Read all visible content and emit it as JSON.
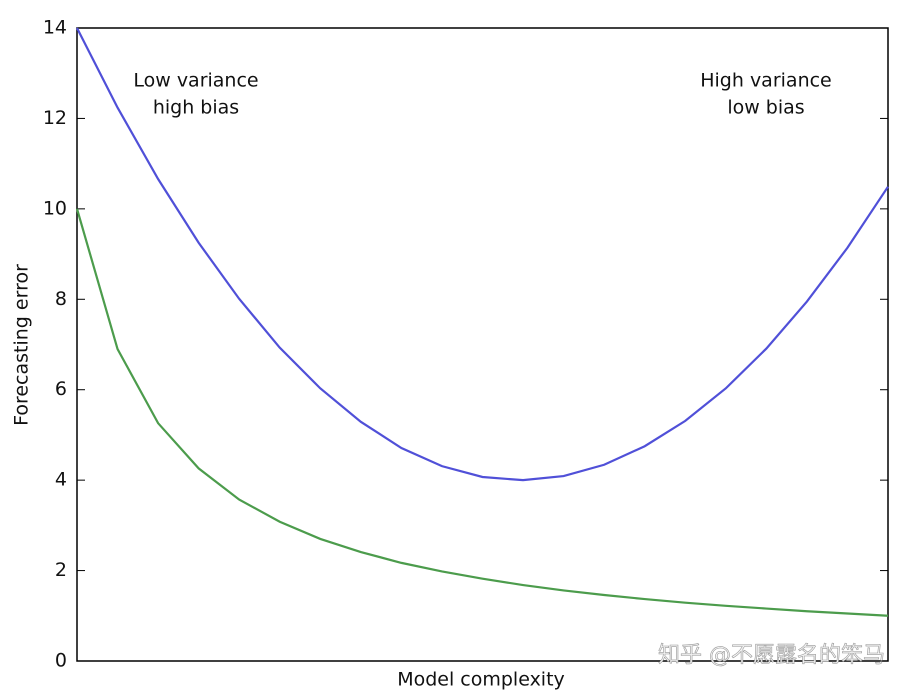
{
  "chart_data": {
    "type": "line",
    "y_label": "Forecasting error",
    "x_label": "Model complexity",
    "annotations": [
      {
        "lines": [
          "Low variance",
          "high bias"
        ]
      },
      {
        "lines": [
          "High variance",
          "low bias"
        ]
      }
    ],
    "watermark": "知乎 @不愿露名的笨马",
    "x": [
      0,
      0.05,
      0.1,
      0.15,
      0.2,
      0.25,
      0.3,
      0.35,
      0.4,
      0.45,
      0.5,
      0.55,
      0.6,
      0.65,
      0.7,
      0.75,
      0.8,
      0.85,
      0.9,
      0.95,
      1
    ],
    "xlim": [
      0,
      1
    ],
    "ylim": [
      0,
      14
    ],
    "yticks": [
      0,
      2,
      4,
      6,
      8,
      10,
      12,
      14
    ],
    "series": [
      {
        "color": "#5050d8",
        "values": [
          14.0,
          12.24,
          10.66,
          9.25,
          8.01,
          6.93,
          6.03,
          5.29,
          4.71,
          4.31,
          4.07,
          4.0,
          4.09,
          4.34,
          4.75,
          5.31,
          6.03,
          6.91,
          7.95,
          9.14,
          10.49
        ]
      },
      {
        "color": "#4c9c4c",
        "values": [
          10.0,
          6.9,
          5.26,
          4.26,
          3.57,
          3.08,
          2.7,
          2.41,
          2.17,
          1.98,
          1.82,
          1.68,
          1.56,
          1.46,
          1.37,
          1.29,
          1.22,
          1.16,
          1.1,
          1.05,
          1.0
        ]
      }
    ]
  }
}
